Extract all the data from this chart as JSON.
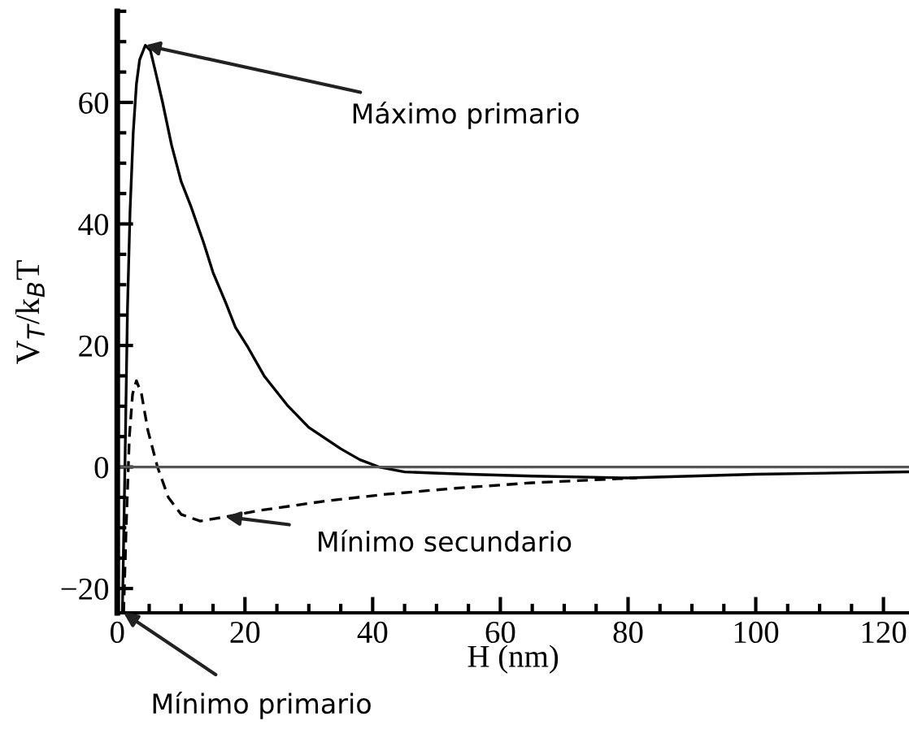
{
  "chart_data": {
    "type": "line",
    "xlabel": "H (nm)",
    "ylabel": "V$_{T}$/k$_{B}$T",
    "xlim": [
      0,
      124
    ],
    "ylim": [
      -24,
      75
    ],
    "xticks": [
      0,
      20,
      40,
      60,
      80,
      100,
      120
    ],
    "yticks": [
      -20,
      0,
      20,
      40,
      60
    ],
    "grid": false,
    "legend": false,
    "series": [
      {
        "color": "#000000",
        "line_style": "solid",
        "x": [
          0.8,
          1.2,
          1.6,
          2,
          2.5,
          3,
          3.5,
          4.4,
          5.2,
          6,
          7.1,
          8.5,
          10,
          11.5,
          13.5,
          15,
          17,
          18.5,
          20.3,
          23,
          26.6,
          30,
          35,
          38,
          41,
          45,
          49.5,
          55,
          65,
          80,
          100,
          124
        ],
        "values": [
          -24,
          0,
          26,
          42,
          55,
          63,
          67,
          69.4,
          68.5,
          65,
          60,
          53,
          47,
          43,
          37,
          32,
          27,
          23,
          20,
          15,
          10.2,
          6.5,
          3,
          1.2,
          0,
          -0.8,
          -1,
          -1.2,
          -1.5,
          -1.8,
          -1.2,
          -0.8
        ]
      },
      {
        "color": "#000000",
        "line_style": "dashed",
        "x": [
          1,
          1.4,
          1.9,
          2.4,
          3,
          3.8,
          4.8,
          6.3,
          8,
          10,
          13,
          17,
          22,
          32.6,
          42,
          52.9,
          65,
          81.4
        ],
        "values": [
          -24,
          -10,
          5,
          12,
          14.2,
          12,
          6,
          0,
          -5,
          -7.8,
          -8.9,
          -8.2,
          -7.2,
          -5.6,
          -4.5,
          -3.5,
          -2.6,
          -1.8
        ]
      }
    ],
    "ref_lines": [
      {
        "axis": "y",
        "value": 0,
        "color": "#555555",
        "line_style": "solid"
      }
    ],
    "annotations": [
      {
        "text": "Máximo primario",
        "x": 4.4,
        "y": 69.4
      },
      {
        "text": "Mínimo secundario",
        "x": 17,
        "y": -8.2
      },
      {
        "text": "Mínimo primario",
        "x": 1,
        "y": -24
      }
    ]
  }
}
